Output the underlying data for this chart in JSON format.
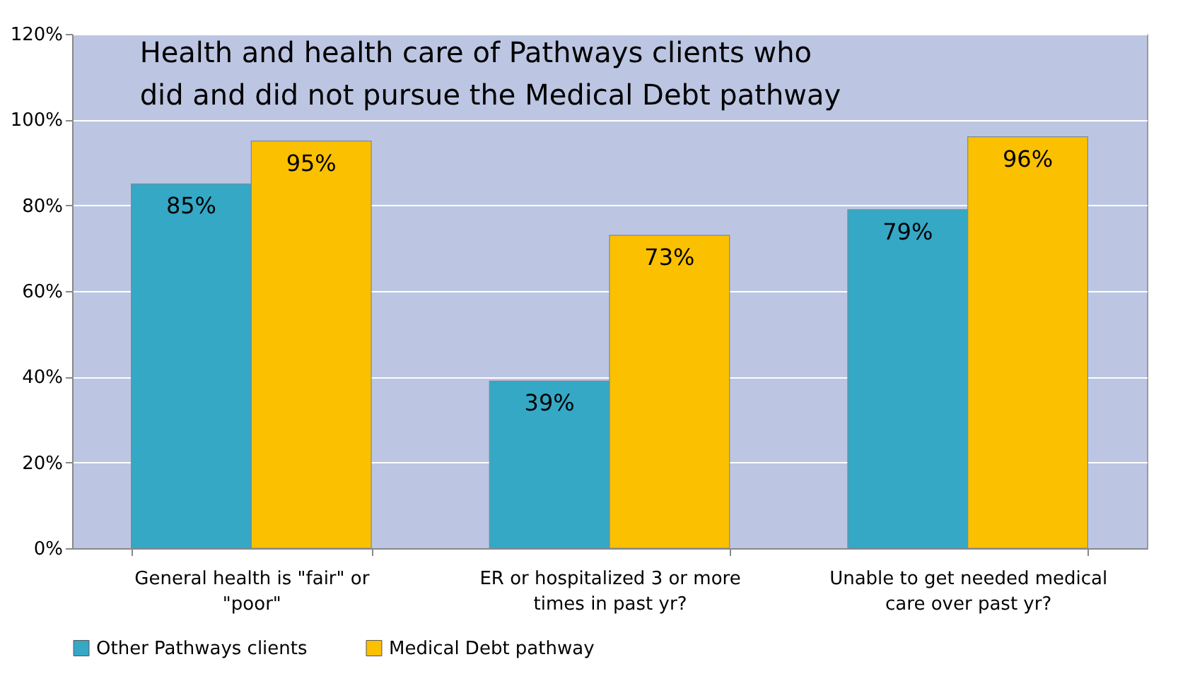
{
  "chart_data": {
    "type": "bar",
    "title": "Health and health care of Pathways clients who did and did not pursue the Medical Debt pathway",
    "categories": [
      "General health is \"fair\" or \"poor\"",
      "ER or hospitalized 3 or more times in past yr?",
      "Unable to get needed medical care over past yr?"
    ],
    "series": [
      {
        "name": "Other Pathways clients",
        "color": "#35a8c6",
        "values": [
          85,
          39,
          79
        ],
        "value_labels": [
          "85%",
          "39%",
          "79%"
        ]
      },
      {
        "name": "Medical Debt pathway",
        "color": "#fbc000",
        "values": [
          95,
          73,
          96
        ],
        "value_labels": [
          "95%",
          "73%",
          "96%"
        ]
      }
    ],
    "ylim": [
      0,
      120
    ],
    "yticks": [
      {
        "value": 0,
        "label": "0%"
      },
      {
        "value": 20,
        "label": "20%"
      },
      {
        "value": 40,
        "label": "40%"
      },
      {
        "value": 60,
        "label": "60%"
      },
      {
        "value": 80,
        "label": "80%"
      },
      {
        "value": 100,
        "label": "100%"
      },
      {
        "value": 120,
        "label": "120%"
      }
    ],
    "grid": "y",
    "legend": "bottom"
  }
}
